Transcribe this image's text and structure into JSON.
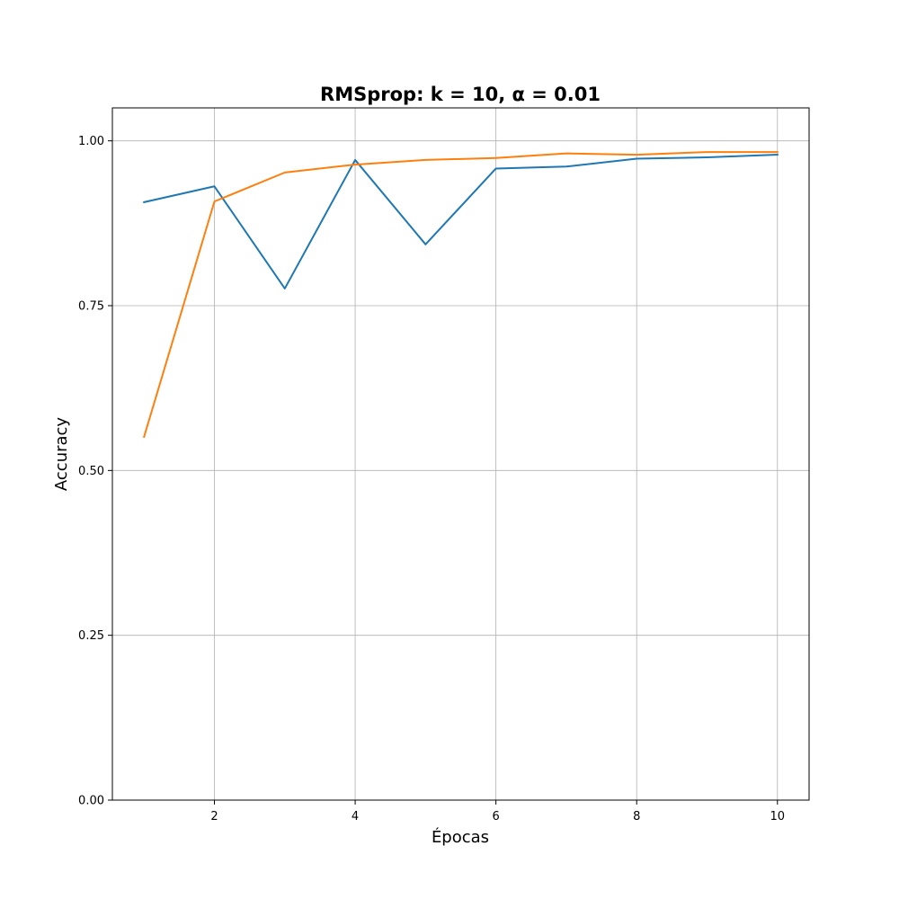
{
  "chart_data": {
    "type": "line",
    "title": "RMSprop: k = 10, α = 0.01",
    "xlabel": "Épocas",
    "ylabel": "Accuracy",
    "xlim": [
      0.55,
      10.45
    ],
    "ylim": [
      0.0,
      1.05
    ],
    "x_ticks": [
      2,
      4,
      6,
      8,
      10
    ],
    "x_tick_labels": [
      "2",
      "4",
      "6",
      "8",
      "10"
    ],
    "y_ticks": [
      0.0,
      0.25,
      0.5,
      0.75,
      1.0
    ],
    "y_tick_labels": [
      "0.00",
      "0.25",
      "0.50",
      "0.75",
      "1.00"
    ],
    "grid": true,
    "legend": "none",
    "x": [
      1,
      2,
      3,
      4,
      5,
      6,
      7,
      8,
      9,
      10
    ],
    "series": [
      {
        "color": "#1f77b4",
        "values": [
          0.907,
          0.931,
          0.776,
          0.971,
          0.843,
          0.958,
          0.961,
          0.973,
          0.975,
          0.979
        ]
      },
      {
        "color": "#ff7f0e",
        "values": [
          0.551,
          0.908,
          0.952,
          0.964,
          0.971,
          0.974,
          0.981,
          0.979,
          0.983,
          0.983
        ]
      }
    ]
  }
}
